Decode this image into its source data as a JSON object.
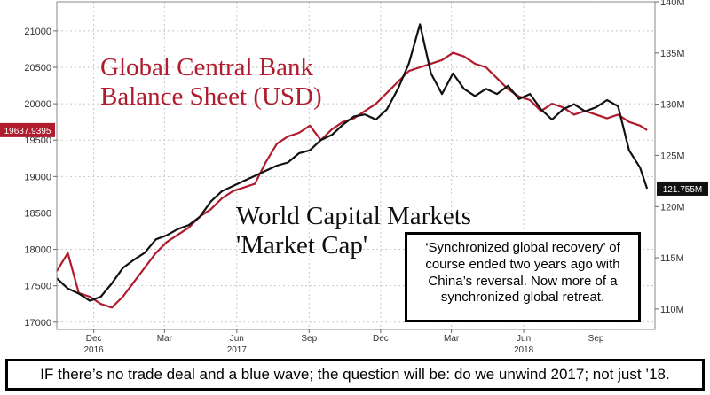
{
  "chart_data": {
    "type": "line",
    "title": "",
    "xlabel": "",
    "ylabel": "",
    "ylabel_right": "",
    "grid": true,
    "x_range": [
      "2016-10-15",
      "2018-11-15"
    ],
    "y_left": {
      "range": [
        16900,
        21400
      ],
      "ticks": [
        17000,
        17500,
        18000,
        18500,
        19000,
        19500,
        20000,
        20500,
        21000
      ]
    },
    "y_right": {
      "range": [
        108,
        140
      ],
      "ticks": [
        "110M",
        "115M",
        "120M",
        "125M",
        "130M",
        "135M",
        "140M"
      ],
      "tick_values": [
        110,
        115,
        120,
        125,
        130,
        135,
        140
      ]
    },
    "x_ticks": [
      {
        "date": "2016-12-01",
        "label": "Dec"
      },
      {
        "date": "2017-03-01",
        "label": "Mar"
      },
      {
        "date": "2017-06-01",
        "label": "Jun"
      },
      {
        "date": "2017-09-01",
        "label": "Sep"
      },
      {
        "date": "2017-12-01",
        "label": "Dec"
      },
      {
        "date": "2018-03-01",
        "label": "Mar"
      },
      {
        "date": "2018-06-01",
        "label": "Jun"
      },
      {
        "date": "2018-09-01",
        "label": "Sep"
      }
    ],
    "year_labels": [
      {
        "date": "2016-12-01",
        "label": "2016"
      },
      {
        "date": "2017-06-01",
        "label": "2017"
      },
      {
        "date": "2018-06-01",
        "label": "2018"
      }
    ],
    "series": [
      {
        "name": "Global Central Bank Balance Sheet (USD)",
        "axis": "left",
        "color": "#b01c2e",
        "last_value_label": "19637.9395",
        "points": [
          [
            "2016-10-15",
            17700
          ],
          [
            "2016-10-29",
            17950
          ],
          [
            "2016-11-12",
            17400
          ],
          [
            "2016-11-26",
            17350
          ],
          [
            "2016-12-10",
            17250
          ],
          [
            "2016-12-24",
            17200
          ],
          [
            "2017-01-07",
            17350
          ],
          [
            "2017-01-21",
            17550
          ],
          [
            "2017-02-04",
            17750
          ],
          [
            "2017-02-18",
            17950
          ],
          [
            "2017-03-04",
            18100
          ],
          [
            "2017-03-18",
            18200
          ],
          [
            "2017-04-01",
            18300
          ],
          [
            "2017-04-15",
            18450
          ],
          [
            "2017-04-29",
            18550
          ],
          [
            "2017-05-13",
            18700
          ],
          [
            "2017-05-27",
            18800
          ],
          [
            "2017-06-10",
            18850
          ],
          [
            "2017-06-24",
            18900
          ],
          [
            "2017-07-08",
            19200
          ],
          [
            "2017-07-22",
            19450
          ],
          [
            "2017-08-05",
            19550
          ],
          [
            "2017-08-19",
            19600
          ],
          [
            "2017-09-02",
            19700
          ],
          [
            "2017-09-16",
            19500
          ],
          [
            "2017-09-30",
            19650
          ],
          [
            "2017-10-14",
            19750
          ],
          [
            "2017-10-28",
            19800
          ],
          [
            "2017-11-11",
            19900
          ],
          [
            "2017-11-25",
            20000
          ],
          [
            "2017-12-09",
            20150
          ],
          [
            "2017-12-23",
            20300
          ],
          [
            "2018-01-06",
            20450
          ],
          [
            "2018-01-20",
            20500
          ],
          [
            "2018-02-03",
            20550
          ],
          [
            "2018-02-17",
            20600
          ],
          [
            "2018-03-03",
            20700
          ],
          [
            "2018-03-17",
            20650
          ],
          [
            "2018-03-31",
            20550
          ],
          [
            "2018-04-14",
            20500
          ],
          [
            "2018-04-28",
            20350
          ],
          [
            "2018-05-12",
            20200
          ],
          [
            "2018-05-26",
            20100
          ],
          [
            "2018-06-09",
            20050
          ],
          [
            "2018-06-23",
            19900
          ],
          [
            "2018-07-07",
            20000
          ],
          [
            "2018-07-21",
            19950
          ],
          [
            "2018-08-04",
            19850
          ],
          [
            "2018-08-18",
            19900
          ],
          [
            "2018-09-01",
            19850
          ],
          [
            "2018-09-15",
            19800
          ],
          [
            "2018-09-29",
            19850
          ],
          [
            "2018-10-13",
            19750
          ],
          [
            "2018-10-27",
            19700
          ],
          [
            "2018-11-05",
            19638
          ]
        ]
      },
      {
        "name": "World Capital Markets 'Market Cap'",
        "axis": "right",
        "color": "#111111",
        "last_value_label": "121.755M",
        "points": [
          [
            "2016-10-15",
            113
          ],
          [
            "2016-10-29",
            112
          ],
          [
            "2016-11-12",
            111.5
          ],
          [
            "2016-11-26",
            110.8
          ],
          [
            "2016-12-10",
            111.2
          ],
          [
            "2016-12-24",
            112.5
          ],
          [
            "2017-01-07",
            114
          ],
          [
            "2017-01-21",
            114.8
          ],
          [
            "2017-02-04",
            115.5
          ],
          [
            "2017-02-18",
            116.8
          ],
          [
            "2017-03-04",
            117.2
          ],
          [
            "2017-03-18",
            117.8
          ],
          [
            "2017-04-01",
            118.2
          ],
          [
            "2017-04-15",
            119
          ],
          [
            "2017-04-29",
            120.5
          ],
          [
            "2017-05-13",
            121.5
          ],
          [
            "2017-05-27",
            122
          ],
          [
            "2017-06-10",
            122.5
          ],
          [
            "2017-06-24",
            123
          ],
          [
            "2017-07-08",
            123.5
          ],
          [
            "2017-07-22",
            124
          ],
          [
            "2017-08-05",
            124.3
          ],
          [
            "2017-08-19",
            125.2
          ],
          [
            "2017-09-02",
            125.5
          ],
          [
            "2017-09-16",
            126.5
          ],
          [
            "2017-09-30",
            127
          ],
          [
            "2017-10-14",
            128
          ],
          [
            "2017-10-28",
            128.8
          ],
          [
            "2017-11-11",
            129
          ],
          [
            "2017-11-25",
            128.5
          ],
          [
            "2017-12-09",
            129.5
          ],
          [
            "2017-12-23",
            131.5
          ],
          [
            "2018-01-06",
            134
          ],
          [
            "2018-01-20",
            137.8
          ],
          [
            "2018-02-03",
            133
          ],
          [
            "2018-02-17",
            131
          ],
          [
            "2018-03-03",
            133
          ],
          [
            "2018-03-17",
            131.5
          ],
          [
            "2018-03-31",
            130.8
          ],
          [
            "2018-04-14",
            131.5
          ],
          [
            "2018-04-28",
            131
          ],
          [
            "2018-05-12",
            131.8
          ],
          [
            "2018-05-26",
            130.5
          ],
          [
            "2018-06-09",
            131
          ],
          [
            "2018-06-23",
            129.5
          ],
          [
            "2018-07-07",
            128.5
          ],
          [
            "2018-07-21",
            129.5
          ],
          [
            "2018-08-04",
            130
          ],
          [
            "2018-08-18",
            129.3
          ],
          [
            "2018-09-01",
            129.7
          ],
          [
            "2018-09-15",
            130.4
          ],
          [
            "2018-09-29",
            129.8
          ],
          [
            "2018-10-13",
            125.5
          ],
          [
            "2018-10-27",
            123.8
          ],
          [
            "2018-11-05",
            121.755
          ]
        ]
      }
    ]
  },
  "labels": {
    "central_bank": [
      "Global Central Bank",
      "Balance Sheet (USD)"
    ],
    "capital_markets": [
      "World Capital Markets",
      "'Market Cap'"
    ]
  },
  "note": "‘Synchronized global recovery’ of course ended two years ago with China’s reversal. Now more of a synchronized global retreat.",
  "footer": "IF there’s no trade deal and a blue wave; the question will be: do we unwind 2017; not just ’18."
}
